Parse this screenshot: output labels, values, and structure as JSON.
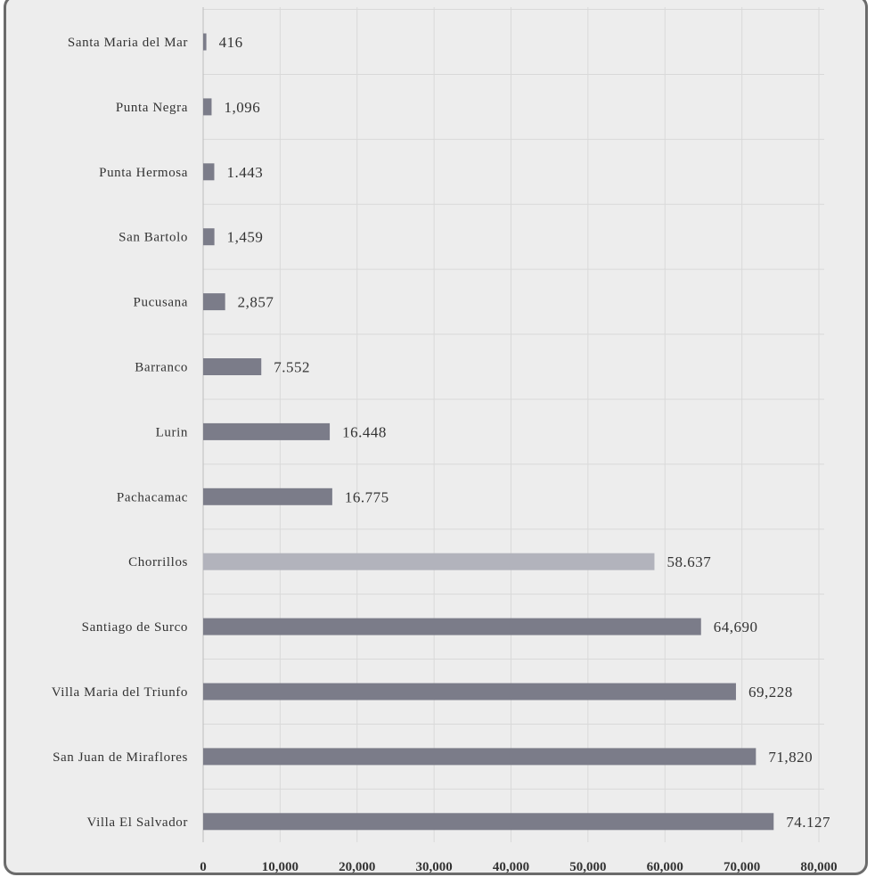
{
  "chart_data": {
    "type": "bar",
    "orientation": "horizontal",
    "categories": [
      "Santa Maria del Mar",
      "Punta Negra",
      "Punta Hermosa",
      "San Bartolo",
      "Pucusana",
      "Barranco",
      "Lurin",
      "Pachacamac",
      "Chorrillos",
      "Santiago de Surco",
      "Villa Maria del Triunfo",
      "San Juan de Miraflores",
      "Villa El Salvador"
    ],
    "values": [
      416,
      1096,
      1443,
      1459,
      2857,
      7552,
      16448,
      16775,
      58637,
      64690,
      69228,
      71820,
      74127
    ],
    "value_labels": [
      "416",
      "1,096",
      "1.443",
      "1,459",
      "2,857",
      "7.552",
      "16.448",
      "16.775",
      "58.637",
      "64,690",
      "69,228",
      "71,820",
      "74.127"
    ],
    "highlight_category": "Chorrillos",
    "xlim": [
      0,
      80000
    ],
    "xticks": [
      "0",
      "10,000",
      "20,000",
      "30,000",
      "40,000",
      "50,000",
      "60,000",
      "70,000",
      "80,000"
    ],
    "grid": true,
    "title": "",
    "xlabel": "",
    "ylabel": ""
  },
  "colors": {
    "bar": "#7b7c89",
    "highlight": "#b2b3bc",
    "panel": "#ededed",
    "grid": "#d9d9d9",
    "frame": "#6b6b6b"
  }
}
